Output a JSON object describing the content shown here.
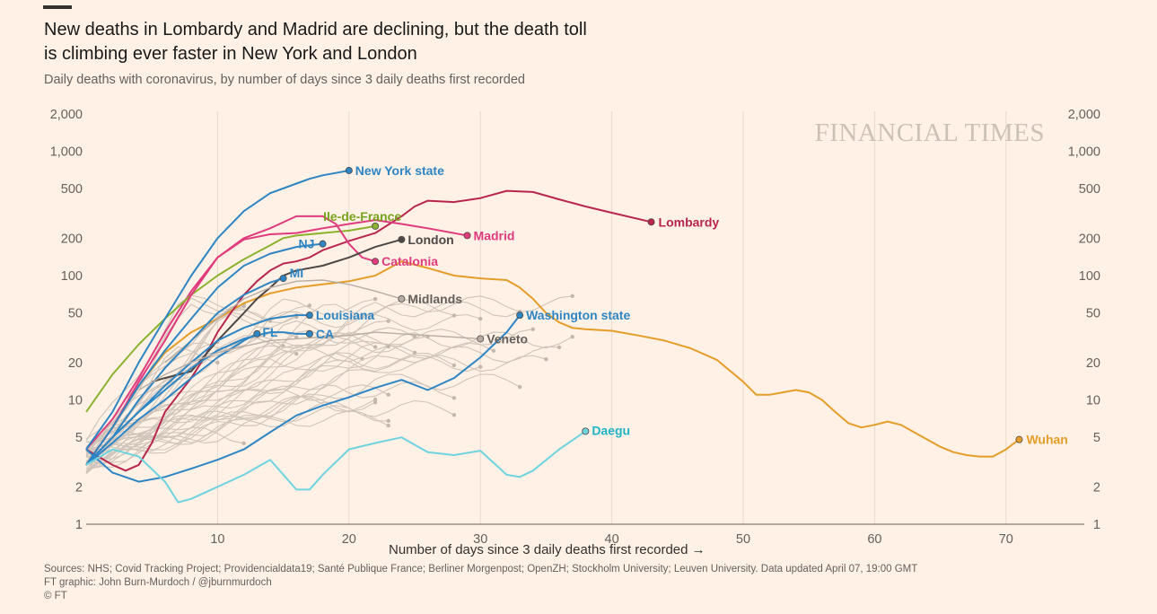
{
  "header": {
    "title_line1": "New deaths in Lombardy and Madrid are declining, but the death toll",
    "title_line2": "is climbing ever faster in New York and London",
    "subtitle": "Daily deaths with coronavirus, by number of days since 3 daily deaths first recorded"
  },
  "watermark": "FINANCIAL TIMES",
  "footer": {
    "sources": "Sources: NHS; Covid Tracking Project; Providencialdata19; Santé Publique France; Berliner Morgenpost; OpenZH; Stockholm University; Leuven University. Data updated April 07, 19:00 GMT",
    "credit": "FT graphic: John Burn-Murdoch / @jburnmurdoch",
    "copyright": "© FT"
  },
  "chart_data": {
    "type": "line",
    "title": "New deaths in Lombardy and Madrid are declining, but the death toll is climbing ever faster in New York and London",
    "subtitle": "Daily deaths with coronavirus, by number of days since 3 daily deaths first recorded",
    "xlabel": "Number of days since 3 daily deaths first recorded →",
    "ylabel": "",
    "y_scale": "log",
    "xlim": [
      0,
      76
    ],
    "ylim": [
      1,
      2000
    ],
    "x_ticks": [
      10,
      20,
      30,
      40,
      50,
      60,
      70
    ],
    "y_ticks": [
      1,
      2,
      5,
      10,
      20,
      50,
      100,
      200,
      500,
      1000,
      2000
    ],
    "y_tick_labels": [
      "1",
      "2",
      "5",
      "10",
      "20",
      "50",
      "100",
      "200",
      "500",
      "1,000",
      "2,000"
    ],
    "grid": "vertical",
    "series": [
      {
        "name": "Wuhan",
        "color": "#e59d29",
        "x": [
          0,
          2,
          4,
          6,
          8,
          10,
          12,
          14,
          16,
          18,
          20,
          22,
          24,
          26,
          28,
          30,
          32,
          33,
          34,
          35,
          36,
          37,
          38,
          40,
          42,
          44,
          46,
          48,
          50,
          51,
          52,
          53,
          54,
          55,
          56,
          57,
          58,
          59,
          60,
          61,
          62,
          63,
          64,
          65,
          66,
          67,
          68,
          69,
          70,
          71
        ],
        "y": [
          3,
          6,
          13,
          24,
          35,
          45,
          60,
          72,
          80,
          85,
          90,
          100,
          130,
          115,
          100,
          95,
          92,
          80,
          65,
          50,
          42,
          38,
          37,
          36,
          33,
          30,
          26,
          21,
          14,
          11,
          11,
          11.5,
          12,
          11.5,
          10,
          8,
          6.5,
          6,
          6.3,
          6.7,
          6.3,
          5.5,
          4.8,
          4.2,
          3.8,
          3.6,
          3.5,
          3.5,
          4,
          4.8
        ]
      },
      {
        "name": "Lombardy",
        "color": "#b8264e",
        "x": [
          0,
          2,
          3,
          4,
          5,
          6,
          7,
          8,
          9,
          10,
          11,
          12,
          13,
          14,
          15,
          16,
          17,
          18,
          20,
          22,
          24,
          25,
          26,
          28,
          30,
          32,
          34,
          36,
          38,
          40,
          43
        ],
        "y": [
          4,
          3,
          2.7,
          3,
          4.5,
          8,
          11,
          15,
          22,
          35,
          50,
          70,
          90,
          110,
          125,
          130,
          140,
          160,
          190,
          220,
          300,
          360,
          400,
          390,
          420,
          480,
          470,
          410,
          360,
          320,
          270
        ]
      },
      {
        "name": "Madrid",
        "color": "#e03b7e",
        "x": [
          0,
          2,
          4,
          6,
          8,
          10,
          12,
          14,
          16,
          18,
          20,
          22,
          24,
          26,
          29
        ],
        "y": [
          4,
          7,
          15,
          35,
          75,
          140,
          195,
          215,
          220,
          240,
          260,
          280,
          260,
          240,
          210
        ]
      },
      {
        "name": "Ile-de-France",
        "color": "#8ab22e",
        "x": [
          0,
          2,
          4,
          6,
          8,
          10,
          12,
          14,
          15,
          16,
          18,
          20,
          22
        ],
        "y": [
          8,
          16,
          28,
          45,
          70,
          100,
          135,
          175,
          200,
          210,
          220,
          230,
          250
        ]
      },
      {
        "name": "New York state",
        "color": "#2d85c4",
        "x": [
          0,
          2,
          4,
          6,
          8,
          10,
          12,
          14,
          16,
          17,
          18,
          20
        ],
        "y": [
          4,
          8,
          20,
          45,
          100,
          200,
          330,
          460,
          550,
          600,
          640,
          700
        ]
      },
      {
        "name": "Catalonia",
        "color": "#e03b7e",
        "x": [
          0,
          2,
          4,
          6,
          8,
          10,
          12,
          14,
          16,
          18,
          19,
          20,
          21,
          22
        ],
        "y": [
          3,
          6,
          14,
          30,
          70,
          140,
          200,
          240,
          300,
          300,
          260,
          180,
          140,
          130
        ]
      },
      {
        "name": "London",
        "color": "#4d4845",
        "x": [
          5,
          6,
          8,
          10,
          12,
          13,
          14,
          15,
          16,
          18,
          20,
          22,
          24
        ],
        "y": [
          14,
          15,
          17,
          30,
          50,
          65,
          80,
          100,
          110,
          120,
          140,
          170,
          195
        ]
      },
      {
        "name": "Midlands",
        "color": "#b7ada5",
        "x": [
          6,
          8,
          10,
          12,
          14,
          16,
          18,
          20,
          22,
          24
        ],
        "y": [
          20,
          30,
          45,
          65,
          80,
          90,
          92,
          85,
          75,
          65
        ]
      },
      {
        "name": "NJ",
        "color": "#2d85c4",
        "x": [
          0,
          2,
          4,
          6,
          8,
          10,
          12,
          14,
          16,
          17,
          18
        ],
        "y": [
          3,
          6,
          13,
          25,
          45,
          80,
          120,
          150,
          170,
          175,
          180
        ]
      },
      {
        "name": "MI",
        "color": "#2d85c4",
        "x": [
          0,
          2,
          4,
          6,
          8,
          10,
          12,
          14,
          15
        ],
        "y": [
          3,
          5,
          10,
          18,
          30,
          50,
          70,
          88,
          95
        ]
      },
      {
        "name": "Louisiana",
        "color": "#2d85c4",
        "x": [
          0,
          2,
          4,
          6,
          8,
          10,
          12,
          14,
          16,
          17
        ],
        "y": [
          3,
          5,
          8,
          13,
          20,
          30,
          38,
          45,
          48,
          48
        ]
      },
      {
        "name": "FL",
        "color": "#2d85c4",
        "x": [
          0,
          2,
          4,
          6,
          8,
          10,
          12,
          13
        ],
        "y": [
          3,
          4.5,
          7,
          10,
          15,
          22,
          30,
          34
        ]
      },
      {
        "name": "CA",
        "color": "#2d85c4",
        "x": [
          0,
          2,
          4,
          6,
          8,
          10,
          12,
          13,
          14,
          15,
          16,
          17
        ],
        "y": [
          3,
          5,
          8,
          12,
          18,
          25,
          31,
          33,
          35,
          35,
          34,
          34
        ]
      },
      {
        "name": "Washington state",
        "color": "#2d85c4",
        "x": [
          0,
          2,
          4,
          6,
          8,
          10,
          12,
          14,
          16,
          18,
          20,
          22,
          24,
          26,
          28,
          30,
          32,
          33
        ],
        "y": [
          4,
          2.6,
          2.2,
          2.4,
          2.8,
          3.3,
          4,
          5.5,
          7.5,
          9,
          10.5,
          12.5,
          14.5,
          12,
          15,
          22,
          35,
          48
        ]
      },
      {
        "name": "Veneto",
        "color": "#b7ada5",
        "x": [
          4,
          6,
          8,
          10,
          12,
          14,
          16,
          18,
          20,
          22,
          24,
          26,
          28,
          30
        ],
        "y": [
          12,
          16,
          20,
          24,
          27,
          30,
          31,
          32,
          33,
          35,
          34,
          33,
          32,
          31
        ]
      },
      {
        "name": "Daegu",
        "color": "#6fd3e0",
        "x": [
          0,
          2,
          4,
          6,
          7,
          8,
          10,
          12,
          14,
          16,
          17,
          18,
          20,
          22,
          24,
          26,
          28,
          30,
          32,
          33,
          34,
          36,
          38
        ],
        "y": [
          3,
          4,
          3.5,
          2.2,
          1.5,
          1.6,
          2,
          2.5,
          3.3,
          1.9,
          1.9,
          2.5,
          4,
          4.5,
          5,
          3.8,
          3.6,
          3.9,
          2.5,
          2.4,
          2.7,
          4,
          5.6
        ]
      }
    ]
  },
  "labels": {
    "Wuhan": "Wuhan",
    "Lombardy": "Lombardy",
    "Madrid": "Madrid",
    "Ile-de-France": "Ile-de-France",
    "New York state": "New York state",
    "Catalonia": "Catalonia",
    "London": "London",
    "Midlands": "Midlands",
    "NJ": "NJ",
    "MI": "MI",
    "Louisiana": "Louisiana",
    "FL": "FL",
    "CA": "CA",
    "Washington state": "Washington state",
    "Veneto": "Veneto",
    "Daegu": "Daegu"
  }
}
